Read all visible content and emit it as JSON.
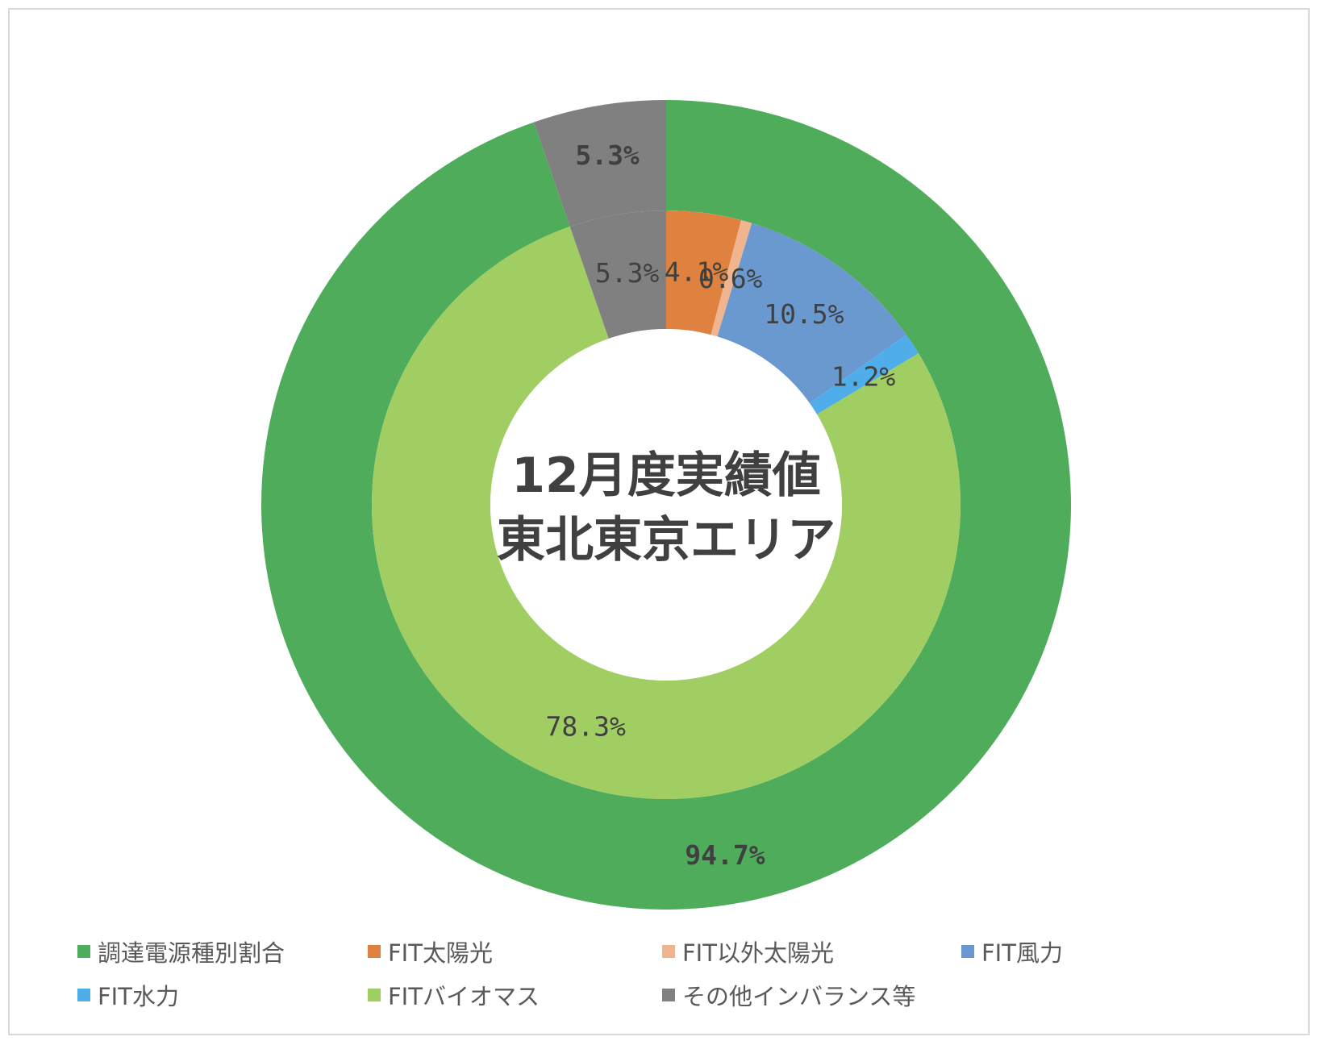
{
  "chart_data": {
    "type": "pie",
    "variant": "double-donut",
    "center_text": [
      "12月度実績値",
      "東北東京エリア"
    ],
    "legend_position": "bottom",
    "rings": [
      {
        "ring": "outer",
        "slices": [
          {
            "name": "調達電源種別割合",
            "value": 94.7,
            "label": "94.7%",
            "color": "#4EAC5B"
          },
          {
            "name": "その他インバランス等",
            "value": 5.3,
            "label": "5.3%",
            "color": "#808080"
          }
        ]
      },
      {
        "ring": "inner",
        "slices": [
          {
            "name": "FIT太陽光",
            "value": 4.1,
            "label": "4.1%",
            "color": "#E0823F"
          },
          {
            "name": "FIT以外太陽光",
            "value": 0.6,
            "label": "0.6%",
            "color": "#F0B48E"
          },
          {
            "name": "FIT風力",
            "value": 10.5,
            "label": "10.5%",
            "color": "#6A99D0"
          },
          {
            "name": "FIT水力",
            "value": 1.2,
            "label": "1.2%",
            "color": "#4FADEA"
          },
          {
            "name": "FITバイオマス",
            "value": 78.3,
            "label": "78.3%",
            "color": "#A0CE63"
          },
          {
            "name": "その他インバランス等",
            "value": 5.3,
            "label": "5.3%",
            "color": "#808080"
          }
        ]
      }
    ],
    "legend": [
      {
        "label": "調達電源種別割合",
        "color": "#4EAC5B"
      },
      {
        "label": "FIT太陽光",
        "color": "#E0823F"
      },
      {
        "label": "FIT以外太陽光",
        "color": "#F0B48E"
      },
      {
        "label": "FIT風力",
        "color": "#6A99D0"
      },
      {
        "label": "FIT水力",
        "color": "#4FADEA"
      },
      {
        "label": "FITバイオマス",
        "color": "#A0CE63"
      },
      {
        "label": "その他インバランス等",
        "color": "#808080"
      }
    ]
  }
}
